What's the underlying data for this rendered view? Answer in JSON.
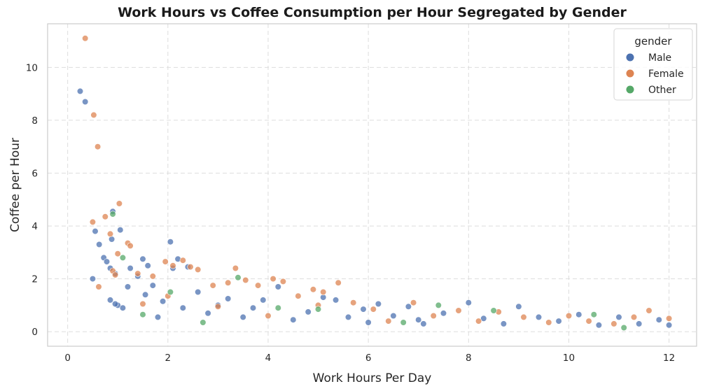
{
  "chart_data": {
    "type": "scatter",
    "title": "Work Hours vs Coffee Consumption per Hour Segregated by Gender",
    "xlabel": "Work Hours Per Day",
    "ylabel": "Coffee per Hour",
    "xlim": [
      -0.4,
      12.55
    ],
    "ylim": [
      -0.55,
      11.65
    ],
    "xticks": [
      0,
      2,
      4,
      6,
      8,
      10,
      12
    ],
    "yticks": [
      0,
      2,
      4,
      6,
      8,
      10
    ],
    "grid": true,
    "legend": {
      "title": "gender",
      "placement": "top-right"
    },
    "series": [
      {
        "name": "Male",
        "color": "#4c72b0",
        "points": [
          [
            0.25,
            9.1
          ],
          [
            0.35,
            8.7
          ],
          [
            0.5,
            2.0
          ],
          [
            0.55,
            3.8
          ],
          [
            0.63,
            3.3
          ],
          [
            0.72,
            2.8
          ],
          [
            0.78,
            2.65
          ],
          [
            0.85,
            2.4
          ],
          [
            0.88,
            3.5
          ],
          [
            0.9,
            4.55
          ],
          [
            0.95,
            2.2
          ],
          [
            1.05,
            3.85
          ],
          [
            1.0,
            1.0
          ],
          [
            1.1,
            0.9
          ],
          [
            0.85,
            1.2
          ],
          [
            0.95,
            1.05
          ],
          [
            1.2,
            1.7
          ],
          [
            1.25,
            2.4
          ],
          [
            1.4,
            2.1
          ],
          [
            1.5,
            2.75
          ],
          [
            1.55,
            1.4
          ],
          [
            1.7,
            1.75
          ],
          [
            1.6,
            2.5
          ],
          [
            1.8,
            0.55
          ],
          [
            1.9,
            1.15
          ],
          [
            2.05,
            3.4
          ],
          [
            2.2,
            2.75
          ],
          [
            2.4,
            2.45
          ],
          [
            2.1,
            2.4
          ],
          [
            2.3,
            0.9
          ],
          [
            2.6,
            1.5
          ],
          [
            2.8,
            0.7
          ],
          [
            3.0,
            1.0
          ],
          [
            3.2,
            1.25
          ],
          [
            3.5,
            0.55
          ],
          [
            3.7,
            0.9
          ],
          [
            3.9,
            1.2
          ],
          [
            4.2,
            1.7
          ],
          [
            4.5,
            0.45
          ],
          [
            4.8,
            0.75
          ],
          [
            5.1,
            1.3
          ],
          [
            5.35,
            1.2
          ],
          [
            5.6,
            0.55
          ],
          [
            5.9,
            0.85
          ],
          [
            6.2,
            1.05
          ],
          [
            6.5,
            0.6
          ],
          [
            6.8,
            0.95
          ],
          [
            7.1,
            0.3
          ],
          [
            7.5,
            0.7
          ],
          [
            8.0,
            1.1
          ],
          [
            8.3,
            0.5
          ],
          [
            8.7,
            0.3
          ],
          [
            9.0,
            0.95
          ],
          [
            9.4,
            0.55
          ],
          [
            9.8,
            0.4
          ],
          [
            10.2,
            0.65
          ],
          [
            10.6,
            0.25
          ],
          [
            11.0,
            0.55
          ],
          [
            11.4,
            0.3
          ],
          [
            11.8,
            0.45
          ],
          [
            12.0,
            0.25
          ],
          [
            6.0,
            0.35
          ],
          [
            7.0,
            0.45
          ]
        ]
      },
      {
        "name": "Female",
        "color": "#dd8452",
        "points": [
          [
            0.35,
            11.1
          ],
          [
            0.52,
            8.2
          ],
          [
            0.6,
            7.0
          ],
          [
            0.5,
            4.15
          ],
          [
            0.62,
            1.7
          ],
          [
            0.75,
            4.35
          ],
          [
            0.85,
            3.7
          ],
          [
            0.9,
            2.3
          ],
          [
            0.95,
            2.15
          ],
          [
            1.03,
            4.85
          ],
          [
            1.0,
            2.95
          ],
          [
            1.2,
            3.35
          ],
          [
            1.25,
            3.25
          ],
          [
            1.4,
            2.2
          ],
          [
            1.5,
            1.05
          ],
          [
            1.7,
            2.1
          ],
          [
            1.95,
            2.65
          ],
          [
            2.1,
            2.5
          ],
          [
            2.3,
            2.7
          ],
          [
            2.45,
            2.45
          ],
          [
            2.6,
            2.35
          ],
          [
            2.9,
            1.75
          ],
          [
            3.2,
            1.85
          ],
          [
            3.35,
            2.4
          ],
          [
            3.55,
            1.95
          ],
          [
            3.8,
            1.75
          ],
          [
            4.1,
            2.0
          ],
          [
            4.3,
            1.9
          ],
          [
            4.6,
            1.35
          ],
          [
            4.9,
            1.6
          ],
          [
            5.1,
            1.5
          ],
          [
            5.4,
            1.85
          ],
          [
            5.7,
            1.1
          ],
          [
            6.1,
            0.85
          ],
          [
            6.4,
            0.4
          ],
          [
            6.9,
            1.1
          ],
          [
            7.3,
            0.6
          ],
          [
            7.8,
            0.8
          ],
          [
            8.2,
            0.4
          ],
          [
            8.6,
            0.75
          ],
          [
            9.1,
            0.55
          ],
          [
            9.6,
            0.35
          ],
          [
            10.0,
            0.6
          ],
          [
            10.4,
            0.4
          ],
          [
            10.9,
            0.3
          ],
          [
            11.3,
            0.55
          ],
          [
            11.6,
            0.8
          ],
          [
            12.0,
            0.5
          ],
          [
            3.0,
            0.95
          ],
          [
            4.0,
            0.6
          ],
          [
            5.0,
            1.0
          ],
          [
            2.0,
            1.35
          ]
        ]
      },
      {
        "name": "Other",
        "color": "#55a868",
        "points": [
          [
            0.9,
            4.45
          ],
          [
            1.1,
            2.8
          ],
          [
            1.5,
            0.65
          ],
          [
            2.05,
            1.5
          ],
          [
            3.4,
            2.05
          ],
          [
            4.2,
            0.9
          ],
          [
            5.0,
            0.85
          ],
          [
            6.7,
            0.35
          ],
          [
            7.4,
            1.0
          ],
          [
            8.5,
            0.8
          ],
          [
            10.5,
            0.65
          ],
          [
            11.1,
            0.15
          ],
          [
            2.7,
            0.35
          ]
        ]
      }
    ]
  }
}
